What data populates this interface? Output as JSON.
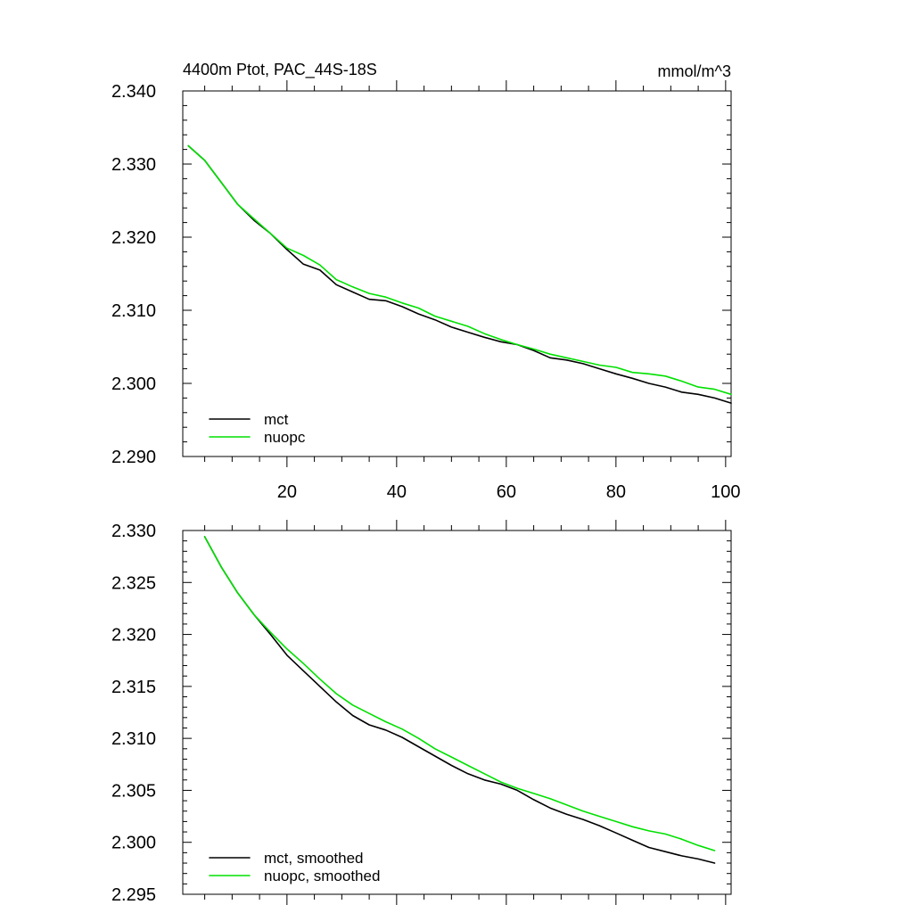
{
  "chart_data": [
    {
      "type": "line",
      "title": "4400m Ptot, PAC_44S-18S",
      "units": "mmol/m^3",
      "xlabel": "",
      "ylabel": "",
      "xlim": [
        1,
        101
      ],
      "ylim": [
        2.29,
        2.34
      ],
      "xticks": [
        20,
        40,
        60,
        80,
        100
      ],
      "xtick_labels": [
        "20",
        "40",
        "60",
        "80",
        "100"
      ],
      "yticks": [
        2.29,
        2.3,
        2.31,
        2.32,
        2.33,
        2.34
      ],
      "ytick_labels": [
        "2.290",
        "2.300",
        "2.310",
        "2.320",
        "2.330",
        "2.340"
      ],
      "legend_position": "bottom-left",
      "series": [
        {
          "name": "mct",
          "color": "#000000",
          "x": [
            2,
            5,
            8,
            11,
            14,
            17,
            20,
            23,
            26,
            29,
            32,
            35,
            38,
            41,
            44,
            47,
            50,
            53,
            56,
            59,
            62,
            65,
            68,
            71,
            74,
            77,
            80,
            83,
            86,
            89,
            92,
            95,
            98,
            101
          ],
          "values": [
            2.3325,
            2.3305,
            2.3275,
            2.3245,
            2.3223,
            2.3205,
            2.3183,
            2.3163,
            2.3155,
            2.3135,
            2.3125,
            2.3115,
            2.3113,
            2.3105,
            2.3095,
            2.3087,
            2.3077,
            2.307,
            2.3063,
            2.3057,
            2.3053,
            2.3045,
            2.3035,
            2.3032,
            2.3027,
            2.302,
            2.3013,
            2.3007,
            2.3,
            2.2995,
            2.2988,
            2.2985,
            2.298,
            2.2973
          ]
        },
        {
          "name": "nuopc",
          "color": "#00e000",
          "x": [
            2,
            5,
            8,
            11,
            14,
            17,
            20,
            23,
            26,
            29,
            32,
            35,
            38,
            41,
            44,
            47,
            50,
            53,
            56,
            59,
            62,
            65,
            68,
            71,
            74,
            77,
            80,
            83,
            86,
            89,
            92,
            95,
            98,
            101
          ],
          "values": [
            2.3325,
            2.3305,
            2.3275,
            2.3245,
            2.3225,
            2.3205,
            2.3185,
            2.3175,
            2.3162,
            2.3142,
            2.3132,
            2.3123,
            2.3118,
            2.311,
            2.3103,
            2.3092,
            2.3085,
            2.3078,
            2.3068,
            2.306,
            2.3053,
            2.3047,
            2.304,
            2.3035,
            2.303,
            2.3025,
            2.3022,
            2.3015,
            2.3013,
            2.301,
            2.3003,
            2.2995,
            2.2992,
            2.2985
          ]
        }
      ]
    },
    {
      "type": "line",
      "title": "",
      "xlabel": "",
      "ylabel": "",
      "xlim": [
        1,
        101
      ],
      "ylim": [
        2.295,
        2.33
      ],
      "xticks": [
        20,
        40,
        60,
        80,
        100
      ],
      "xtick_labels": [],
      "yticks": [
        2.295,
        2.3,
        2.305,
        2.31,
        2.315,
        2.32,
        2.325,
        2.33
      ],
      "ytick_labels": [
        "2.295",
        "2.300",
        "2.305",
        "2.310",
        "2.315",
        "2.320",
        "2.325",
        "2.330"
      ],
      "legend_position": "bottom-left",
      "series": [
        {
          "name": "mct, smoothed",
          "color": "#000000",
          "x": [
            5,
            8,
            11,
            14,
            17,
            20,
            23,
            26,
            29,
            32,
            35,
            38,
            41,
            44,
            47,
            50,
            53,
            56,
            59,
            62,
            65,
            68,
            71,
            74,
            77,
            80,
            83,
            86,
            89,
            92,
            95,
            98
          ],
          "values": [
            2.3294,
            2.3265,
            2.324,
            2.3219,
            2.32,
            2.318,
            2.3165,
            2.315,
            2.3135,
            2.3122,
            2.3113,
            2.3108,
            2.3101,
            2.3092,
            2.3083,
            2.3074,
            2.3066,
            2.306,
            2.3056,
            2.305,
            2.3041,
            2.3033,
            2.3027,
            2.3022,
            2.3016,
            2.3009,
            2.3002,
            2.2995,
            2.2991,
            2.2987,
            2.2984,
            2.298
          ]
        },
        {
          "name": "nuopc, smoothed",
          "color": "#00e000",
          "x": [
            5,
            8,
            11,
            14,
            17,
            20,
            23,
            26,
            29,
            32,
            35,
            38,
            41,
            44,
            47,
            50,
            53,
            56,
            59,
            62,
            65,
            68,
            71,
            74,
            77,
            80,
            83,
            86,
            89,
            92,
            95,
            98
          ],
          "values": [
            2.3294,
            2.3265,
            2.324,
            2.3219,
            2.3202,
            2.3186,
            2.3172,
            2.3157,
            2.3143,
            2.3132,
            2.3124,
            2.3116,
            2.3109,
            2.31,
            2.309,
            2.3082,
            2.3074,
            2.3066,
            2.3058,
            2.3052,
            2.3047,
            2.3042,
            2.3036,
            2.303,
            2.3025,
            2.302,
            2.3015,
            2.3011,
            2.3008,
            2.3003,
            2.2997,
            2.2992
          ]
        }
      ]
    }
  ]
}
